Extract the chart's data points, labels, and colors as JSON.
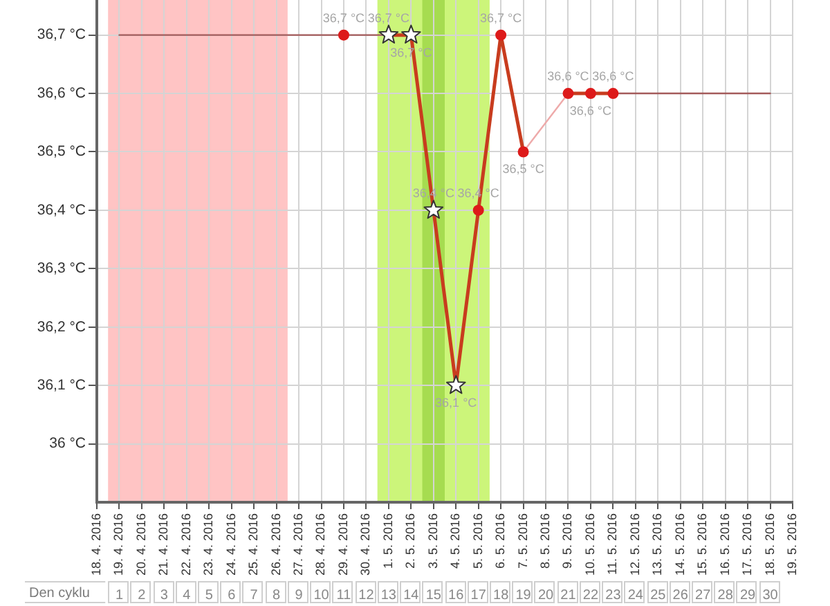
{
  "chart_data": {
    "type": "line",
    "categories": [
      "18. 4. 2016",
      "19. 4. 2016",
      "20. 4. 2016",
      "21. 4. 2016",
      "22. 4. 2016",
      "23. 4. 2016",
      "24. 4. 2016",
      "25. 4. 2016",
      "26. 4. 2016",
      "27. 4. 2016",
      "28. 4. 2016",
      "29. 4. 2016",
      "30. 4. 2016",
      "1. 5. 2016",
      "2. 5. 2016",
      "3. 5. 2016",
      "4. 5. 2016",
      "5. 5. 2016",
      "6. 5. 2016",
      "7. 5. 2016",
      "8. 5. 2016",
      "9. 5. 2016",
      "10. 5. 2016",
      "11. 5. 2016",
      "12. 5. 2016",
      "13. 5. 2016",
      "14. 5. 2016",
      "15. 5. 2016",
      "16. 5. 2016",
      "17. 5. 2016",
      "18. 5. 2016",
      "19. 5. 2016"
    ],
    "series": [
      {
        "type": "line",
        "color": "#a35a5a",
        "marker": "none",
        "values": [
          null,
          36.7,
          36.7,
          36.7,
          36.7,
          36.7,
          36.7,
          36.7,
          36.7,
          36.7,
          36.7,
          36.7,
          36.7,
          36.7,
          null,
          null,
          null,
          null,
          null,
          null,
          null,
          null,
          null,
          36.6,
          36.6,
          36.6,
          36.6,
          36.6,
          36.6,
          36.6,
          36.6,
          null
        ]
      },
      {
        "type": "line",
        "color": "#eeaaaa",
        "marker": "none",
        "x": [
          "7. 5. 2016",
          "9. 5. 2016"
        ],
        "values": [
          36.5,
          36.6
        ]
      },
      {
        "type": "line",
        "color": "#c83c1e",
        "marker": "none",
        "values": [
          null,
          null,
          null,
          null,
          null,
          null,
          null,
          null,
          null,
          null,
          null,
          null,
          null,
          36.7,
          36.7,
          36.4,
          36.1,
          36.4,
          36.7,
          36.5,
          null,
          36.6,
          36.6,
          36.6,
          null,
          null,
          null,
          null,
          null,
          null,
          null,
          null
        ],
        "value_labels": [
          null,
          null,
          null,
          null,
          null,
          null,
          null,
          null,
          null,
          null,
          null,
          null,
          null,
          "36,7 °C",
          "36,7 °C",
          "36,4 °C",
          "36,1 °C",
          "36,4 °C",
          "36,7 °C",
          "36,5 °C",
          null,
          "36,6 °C",
          "36,6 °C",
          "36,6 °C",
          null,
          null,
          null,
          null,
          null,
          null,
          null,
          null
        ]
      },
      {
        "type": "scatter",
        "color": "#dd1a1a",
        "marker": "circle",
        "x": [
          "29. 4. 2016",
          "5. 5. 2016",
          "6. 5. 2016",
          "7. 5. 2016",
          "9. 5. 2016",
          "10. 5. 2016",
          "11. 5. 2016"
        ],
        "values": [
          36.7,
          36.4,
          36.7,
          36.5,
          36.6,
          36.6,
          36.6
        ],
        "value_labels": [
          "36,7 °C",
          null,
          null,
          null,
          null,
          null,
          null
        ]
      },
      {
        "type": "scatter",
        "color": "#ffffff",
        "marker": "star",
        "x": [
          "1. 5. 2016",
          "2. 5. 2016",
          "3. 5. 2016",
          "4. 5. 2016"
        ],
        "values": [
          36.7,
          36.7,
          36.4,
          36.1
        ]
      }
    ],
    "bands": [
      {
        "axis": "x",
        "from": "19. 4. 2016",
        "to": "26. 4. 2016",
        "color": "#ffc4c4"
      },
      {
        "axis": "x",
        "from": "1. 5. 2016",
        "to": "5. 5. 2016",
        "color": "#ccf57a"
      },
      {
        "axis": "x",
        "from": "3. 5. 2016",
        "to": "3. 5. 2016",
        "color": "#a6dc50"
      }
    ],
    "ylim": [
      35.9,
      36.76
    ],
    "yticks": [
      {
        "value": 36,
        "label": "36 °C"
      },
      {
        "value": 36.1,
        "label": "36,1 °C"
      },
      {
        "value": 36.2,
        "label": "36,2 °C"
      },
      {
        "value": 36.3,
        "label": "36,3 °C"
      },
      {
        "value": 36.4,
        "label": "36,4 °C"
      },
      {
        "value": 36.5,
        "label": "36,5 °C"
      },
      {
        "value": 36.6,
        "label": "36,6 °C"
      },
      {
        "value": 36.7,
        "label": "36,7 °C"
      }
    ],
    "x2lim": [
      0,
      31
    ],
    "x2ticks": [
      1,
      2,
      3,
      4,
      5,
      6,
      7,
      8,
      9,
      10,
      11,
      12,
      13,
      14,
      15,
      16,
      17,
      18,
      19,
      20,
      21,
      22,
      23,
      24,
      25,
      26,
      27,
      28,
      29,
      30
    ],
    "x2label": "Den cyklu",
    "grid": true
  }
}
